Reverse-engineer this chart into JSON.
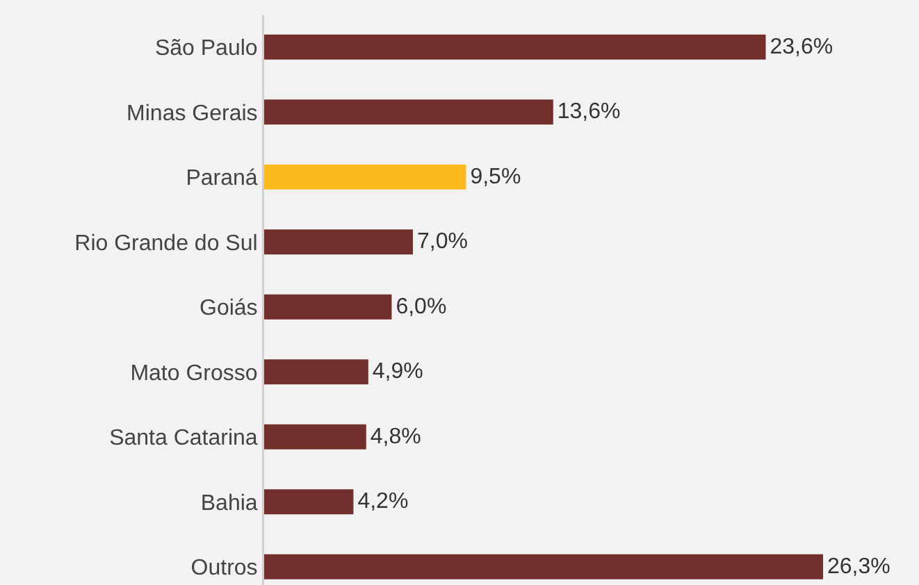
{
  "chart_data": {
    "type": "bar",
    "orientation": "horizontal",
    "categories": [
      "São Paulo",
      "Minas Gerais",
      "Paraná",
      "Rio Grande do Sul",
      "Goiás",
      "Mato Grosso",
      "Santa Catarina",
      "Bahia",
      "Outros"
    ],
    "values": [
      23.6,
      13.6,
      9.5,
      7.0,
      6.0,
      4.9,
      4.8,
      4.2,
      26.3
    ],
    "colors": [
      "#722f2b",
      "#722f2b",
      "#fbb91e",
      "#722f2b",
      "#722f2b",
      "#722f2b",
      "#722f2b",
      "#722f2b",
      "#722f2b"
    ],
    "value_labels": [
      "23,6%",
      "13,6%",
      "9,5%",
      "7,0%",
      "6,0%",
      "4,9%",
      "4,8%",
      "4,2%",
      "26,3%"
    ]
  }
}
